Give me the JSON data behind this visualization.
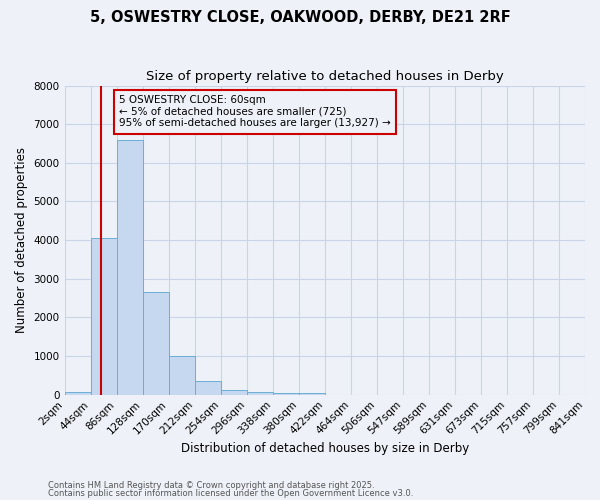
{
  "title_line1": "5, OSWESTRY CLOSE, OAKWOOD, DERBY, DE21 2RF",
  "title_line2": "Size of property relative to detached houses in Derby",
  "xlabel": "Distribution of detached houses by size in Derby",
  "ylabel": "Number of detached properties",
  "bins": [
    2,
    44,
    86,
    128,
    170,
    212,
    254,
    296,
    338,
    380,
    422,
    464,
    506,
    547,
    589,
    631,
    673,
    715,
    757,
    799,
    841
  ],
  "bar_heights": [
    80,
    4050,
    6600,
    2650,
    1000,
    350,
    130,
    80,
    50,
    40,
    0,
    0,
    0,
    0,
    0,
    0,
    0,
    0,
    0,
    0
  ],
  "bar_color": "#c5d8f0",
  "bar_edge_color": "#6baed6",
  "grid_color": "#c8d4e8",
  "background_color": "#eef2f8",
  "property_size": 60,
  "red_line_color": "#cc0000",
  "annotation_line1": "5 OSWESTRY CLOSE: 60sqm",
  "annotation_line2": "← 5% of detached houses are smaller (725)",
  "annotation_line3": "95% of semi-detached houses are larger (13,927) →",
  "annotation_box_color": "#cc0000",
  "ylim": [
    0,
    8000
  ],
  "yticks": [
    0,
    1000,
    2000,
    3000,
    4000,
    5000,
    6000,
    7000,
    8000
  ],
  "footnote_line1": "Contains HM Land Registry data © Crown copyright and database right 2025.",
  "footnote_line2": "Contains public sector information licensed under the Open Government Licence v3.0.",
  "title_fontsize": 10.5,
  "subtitle_fontsize": 9.5,
  "axis_label_fontsize": 8.5,
  "tick_fontsize": 7.5,
  "annotation_fontsize": 7.5,
  "footnote_fontsize": 6.0
}
